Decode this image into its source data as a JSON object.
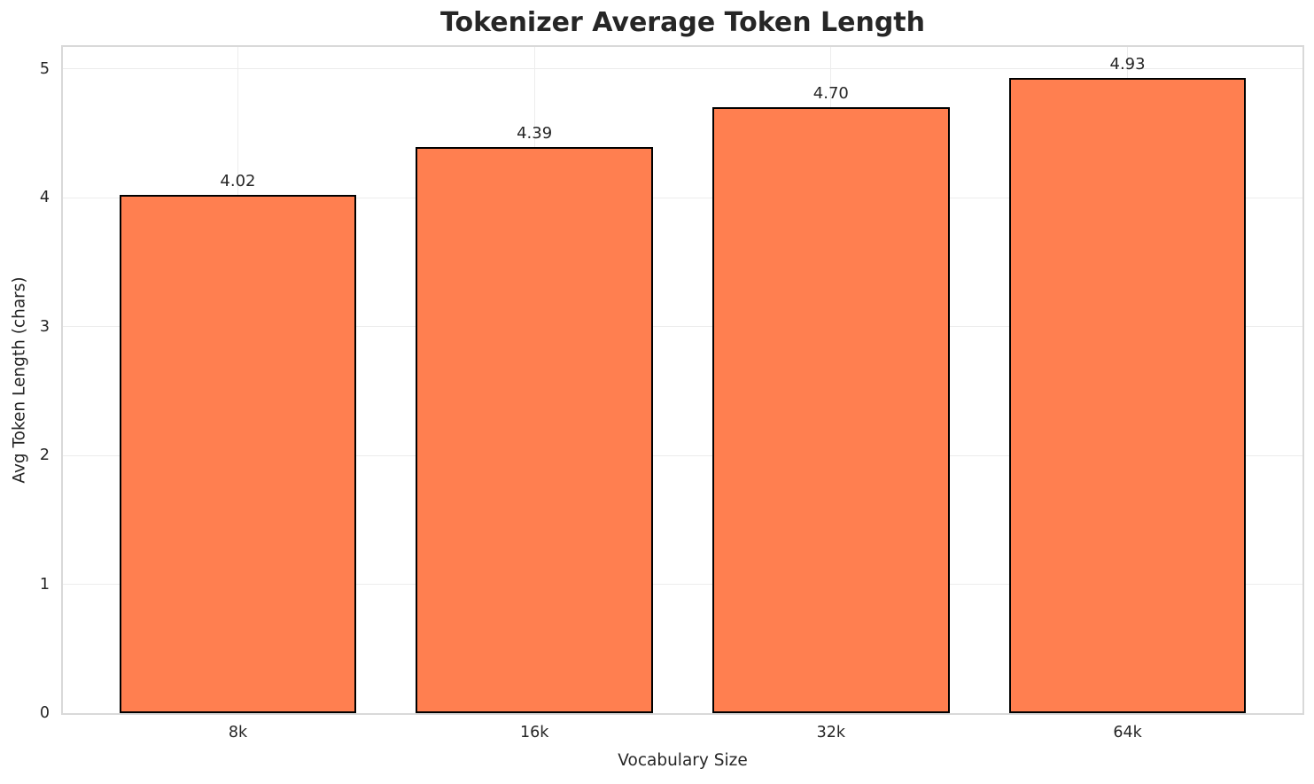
{
  "chart_data": {
    "type": "bar",
    "title": "Tokenizer Average Token Length",
    "xlabel": "Vocabulary Size",
    "ylabel": "Avg Token Length (chars)",
    "categories": [
      "8k",
      "16k",
      "32k",
      "64k"
    ],
    "values": [
      4.02,
      4.39,
      4.7,
      4.93
    ],
    "value_labels": [
      "4.02",
      "4.39",
      "4.70",
      "4.93"
    ],
    "yticks": [
      0,
      1,
      2,
      3,
      4,
      5
    ],
    "ytick_labels": [
      "0",
      "1",
      "2",
      "3",
      "4",
      "5"
    ],
    "ylim": [
      0,
      5.17
    ],
    "bar_color": "#FF7F50",
    "bar_edge_color": "#000000",
    "grid": true,
    "grid_color": "#ececec",
    "spine_color": "#d9d9d9",
    "background_color": "#ffffff",
    "legend_position": "none"
  }
}
